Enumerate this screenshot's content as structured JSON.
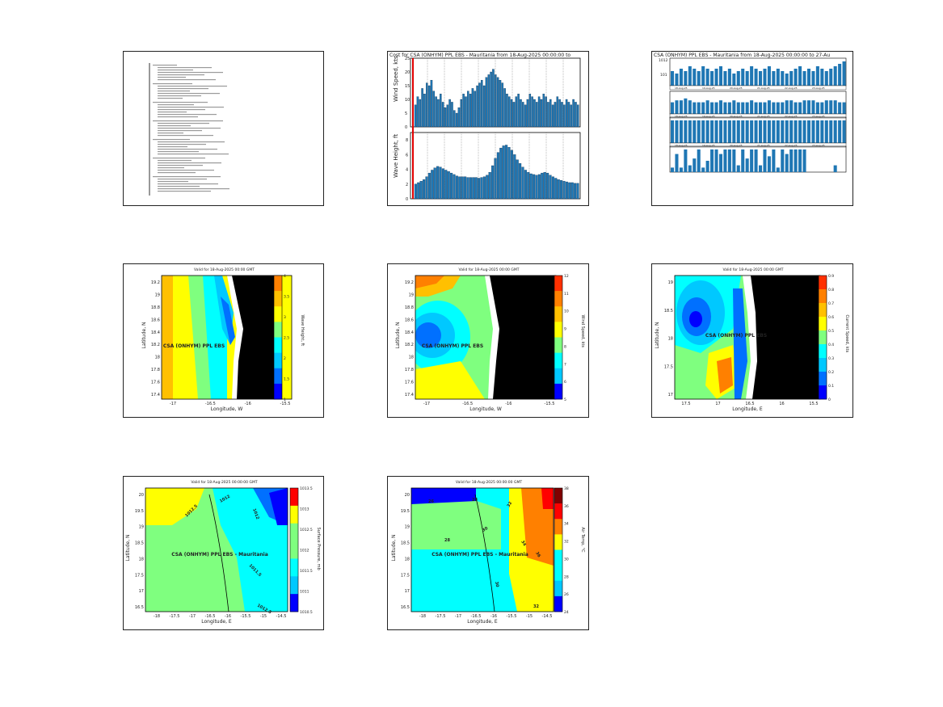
{
  "document_panel": {
    "lines": [
      "..........",
      "..........",
      "..........",
      "..........",
      "..........",
      "..........",
      "..........",
      "..........",
      "..........",
      ".........."
    ]
  },
  "timeseries_panel": {
    "title": "Cost for CSA (ONHYM) PPL EBS - Mauritania from 18-Aug-2025 00:00:00 to",
    "wind_label": "Wind Speed, kts",
    "wave_label": "Wave Height, ft",
    "wind_yticks": [
      "0",
      "5",
      "10",
      "15",
      "20",
      "25"
    ],
    "wave_yticks": [
      "0",
      "2",
      "4",
      "6",
      "8"
    ]
  },
  "multi_bar_panel": {
    "title": "CSA (ONHYM) PPL EBS - Mauritania from 18-Aug-2025 00:00:00 to 27-Au",
    "date_labels": [
      "18-Aug-25",
      "19-Aug-25",
      "20-Aug-25",
      "21-Aug-25",
      "22-Aug-25",
      "23-Aug-25"
    ],
    "row1_ytick": "1012",
    "row1_ytick2": "101"
  },
  "maps": [
    {
      "title": "Valid for 18-Aug-2025 00:00 GMT",
      "site_label": "CSA (ONHYM) PPL EBS",
      "xlabel": "Longitude, W",
      "ylabel": "Latitude, N",
      "xticks": [
        "-17",
        "-16.5",
        "-16",
        "-15.5"
      ],
      "yticks": [
        "19.2",
        "19",
        "18.8",
        "18.6",
        "18.4",
        "18.2",
        "18",
        "17.8",
        "17.6",
        "17.4"
      ],
      "cbar_label": "Wave Height, ft",
      "cbar_ticks": [
        "4",
        "3.5",
        "3",
        "2.5",
        "2",
        "1.5",
        "1"
      ]
    },
    {
      "title": "Valid for 18-Aug-2025 00:00 GMT",
      "site_label": "CSA (ONHYM) PPL EBS",
      "xlabel": "Longitude, W",
      "ylabel": "Latitude, N",
      "xticks": [
        "-17",
        "-16.5",
        "-16",
        "-15.5"
      ],
      "yticks": [
        "19.2",
        "19",
        "18.8",
        "18.6",
        "18.4",
        "18.2",
        "18",
        "17.8",
        "17.6",
        "17.4"
      ],
      "cbar_label": "Wind Speed, kts",
      "cbar_ticks": [
        "12",
        "11",
        "10",
        "9",
        "8",
        "7",
        "6",
        "5"
      ]
    },
    {
      "title": "Valid for 18-Aug-2025 00:00 GMT",
      "site_label": "CSA (ONHYM) PPL EBS",
      "xlabel": "Longitude, E",
      "ylabel": "Latitude, N",
      "xticks": [
        "17.5",
        "17",
        "16.5",
        "16",
        "15.5"
      ],
      "yticks": [
        "19",
        "18.5",
        "18",
        "17.5",
        "17"
      ],
      "cbar_label": "Current Speed, kts",
      "cbar_ticks": [
        "0.9",
        "0.8",
        "0.7",
        "0.6",
        "0.5",
        "0.4",
        "0.3",
        "0.2",
        "0.1",
        "0"
      ]
    },
    {
      "title": "Valid for 18-Aug-2025 00:00:00 GMT",
      "site_label": "CSA (ONHYM) PPL EBS - Mauritania",
      "xlabel": "Longitude, E",
      "ylabel": "Latitude, N",
      "xticks": [
        "-18",
        "-17.5",
        "-17",
        "-16.5",
        "-16",
        "-15.5",
        "-15",
        "-14.5"
      ],
      "yticks": [
        "20",
        "19.5",
        "19",
        "18.5",
        "18",
        "17.5",
        "17",
        "16.5"
      ],
      "cbar_label": "Surface Pressure, mb",
      "cbar_ticks": [
        "1013.5",
        "1013",
        "1012.5",
        "1012",
        "1011.5",
        "1011",
        "1010.5"
      ],
      "contour_labels": [
        "1012.5",
        "1012",
        "1012",
        "1011.5",
        "1012.5"
      ]
    },
    {
      "title": "Valid for 18-Aug-2025 00:00:00 GMT",
      "site_label": "CSA (ONHYM) PPL EBS - Mauritania",
      "xlabel": "Longitude, E",
      "ylabel": "Latitude, N",
      "xticks": [
        "-18",
        "-17.5",
        "-17",
        "-16.5",
        "-16",
        "-15.5",
        "-15",
        "-14.5"
      ],
      "yticks": [
        "20",
        "19.5",
        "19",
        "18.5",
        "18",
        "17.5",
        "17",
        "16.5"
      ],
      "cbar_label": "Air Temp, °C",
      "cbar_ticks": [
        "38",
        "36",
        "34",
        "32",
        "30",
        "28",
        "26",
        "24"
      ],
      "contour_labels": [
        "26",
        "28",
        "28",
        "30",
        "32",
        "34",
        "36",
        "30",
        "32"
      ]
    }
  ],
  "chart_data": [
    {
      "type": "bar",
      "title": "Cost for CSA (ONHYM) PPL EBS - Mauritania from 18-Aug-2025 00:00:00 to",
      "ylabel": "Wind Speed, kts",
      "ylim": [
        0,
        25
      ],
      "values": [
        8,
        11,
        10,
        14,
        12,
        16,
        15,
        17,
        13,
        11,
        10,
        12,
        9,
        7,
        8,
        10,
        9,
        6,
        5,
        7,
        10,
        12,
        11,
        13,
        12,
        14,
        13,
        15,
        16,
        17,
        15,
        18,
        19,
        20,
        21,
        19,
        18,
        17,
        16,
        14,
        12,
        11,
        10,
        9,
        11,
        12,
        10,
        9,
        8,
        10,
        12,
        11,
        10,
        9,
        11,
        10,
        12,
        11,
        9,
        10,
        8,
        9,
        11,
        10,
        9,
        8,
        10,
        9,
        8,
        10,
        9,
        8
      ],
      "grid": true
    },
    {
      "type": "bar",
      "ylabel": "Wave Height, ft",
      "ylim": [
        0,
        9
      ],
      "values": [
        2,
        2.2,
        2.4,
        2.6,
        3,
        3.5,
        3.9,
        4.2,
        4.4,
        4.3,
        4.1,
        3.9,
        3.7,
        3.5,
        3.3,
        3.1,
        3,
        3,
        3,
        2.9,
        2.9,
        2.9,
        2.9,
        2.8,
        2.9,
        3,
        3.2,
        3.6,
        4.5,
        5.5,
        6.3,
        6.9,
        7.2,
        7.3,
        7,
        6.6,
        6,
        5.3,
        4.8,
        4.3,
        3.9,
        3.6,
        3.4,
        3.3,
        3.2,
        3.3,
        3.5,
        3.6,
        3.5,
        3.2,
        3,
        2.8,
        2.6,
        2.5,
        2.4,
        2.3,
        2.2,
        2.2,
        2.1,
        2.1
      ],
      "grid": true
    },
    {
      "type": "bar",
      "title": "CSA (ONHYM) PPL EBS - Mauritania from 18-Aug-2025 00:00:00 to 27-Au",
      "series": [
        {
          "values": [
            6,
            5,
            7,
            6,
            8,
            7,
            6,
            8,
            7,
            6,
            7,
            8,
            6,
            7,
            5,
            6,
            7,
            6,
            8,
            7,
            6,
            7,
            8,
            6,
            7,
            6,
            5,
            6,
            7,
            8,
            6,
            7,
            6,
            8,
            7,
            6,
            7,
            8,
            9,
            10
          ]
        },
        {
          "values": [
            6,
            7,
            7,
            8,
            7,
            6,
            6,
            6,
            7,
            6,
            6,
            7,
            6,
            6,
            7,
            6,
            6,
            6,
            7,
            6,
            6,
            6,
            7,
            6,
            6,
            6,
            7,
            7,
            6,
            6,
            7,
            7,
            7,
            6,
            6,
            7,
            7,
            7,
            6,
            6
          ]
        },
        {
          "values": [
            10,
            10,
            10,
            10,
            10,
            10,
            10,
            10,
            10,
            10,
            10,
            10,
            10,
            10,
            10,
            10,
            10,
            10,
            10,
            10,
            10,
            10,
            10,
            10,
            10,
            10,
            10,
            10,
            10,
            10,
            10,
            10,
            10,
            10,
            10,
            10,
            10,
            10,
            10,
            10
          ]
        },
        {
          "values": [
            2,
            8,
            2,
            10,
            3,
            6,
            10,
            2,
            5,
            10,
            10,
            8,
            10,
            10,
            10,
            3,
            10,
            6,
            10,
            10,
            3,
            10,
            7,
            10,
            2,
            10,
            8,
            10,
            10,
            10,
            10,
            0,
            0,
            0,
            0,
            0,
            0,
            3,
            0,
            0
          ]
        }
      ]
    },
    {
      "type": "heatmap",
      "title": "Valid for 18-Aug-2025 00:00 GMT",
      "xlabel": "Longitude, W",
      "ylabel": "Latitude, N",
      "colorbar": "Wave Height, ft",
      "range": [
        1,
        4
      ]
    },
    {
      "type": "heatmap",
      "title": "Valid for 18-Aug-2025 00:00 GMT",
      "xlabel": "Longitude, W",
      "ylabel": "Latitude, N",
      "colorbar": "Wind Speed, kts",
      "range": [
        5,
        12
      ]
    },
    {
      "type": "heatmap",
      "title": "Valid for 18-Aug-2025 00:00 GMT",
      "xlabel": "Longitude, E",
      "ylabel": "Latitude, N",
      "colorbar": "Current Speed, kts",
      "range": [
        0,
        0.9
      ]
    },
    {
      "type": "heatmap",
      "title": "Valid for 18-Aug-2025 00:00:00 GMT",
      "xlabel": "Longitude, E",
      "ylabel": "Latitude, N",
      "colorbar": "Surface Pressure, mb",
      "range": [
        1010.5,
        1013.5
      ]
    },
    {
      "type": "heatmap",
      "title": "Valid for 18-Aug-2025 00:00:00 GMT",
      "xlabel": "Longitude, E",
      "ylabel": "Latitude, N",
      "colorbar": "Air Temp, °C",
      "range": [
        24,
        38
      ]
    }
  ]
}
